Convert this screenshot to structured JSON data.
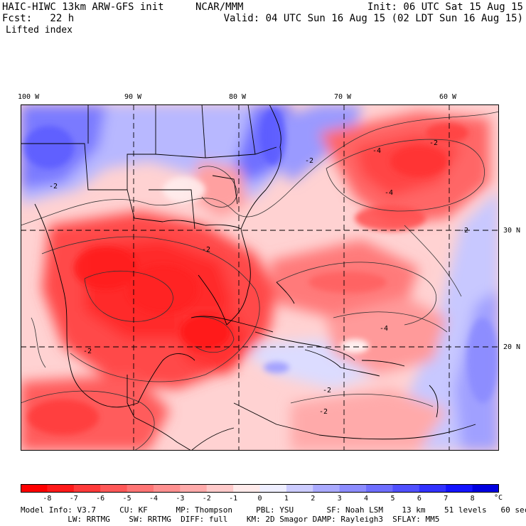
{
  "header": {
    "model_title": "HAIC-HIWC 13km ARW-GFS init",
    "institution": "NCAR/MMM",
    "init_time": "Init: 06 UTC Sat 15 Aug 15",
    "forecast_hour": "Fcst:   22 h",
    "valid_time": "Valid: 04 UTC Sun 16 Aug 15 (02 LDT Sun 16 Aug 15)",
    "field_name": "Lifted index"
  },
  "map": {
    "longitude_labels": [
      "100 W",
      "90 W",
      "80 W",
      "70 W",
      "60 W"
    ],
    "latitude_labels": [
      "30 N",
      "20 N"
    ],
    "contour_labels": [
      "-2",
      "-4",
      "-2",
      "-2",
      "-2",
      "-4",
      "-4",
      "-2",
      "-2",
      "-2",
      "-2"
    ]
  },
  "legend": {
    "ticks": [
      "-8",
      "-7",
      "-6",
      "-5",
      "-4",
      "-3",
      "-2",
      "-1",
      "0",
      "1",
      "2",
      "3",
      "4",
      "5",
      "6",
      "7",
      "8"
    ],
    "unit": "°C",
    "colors": [
      "#ff0000",
      "#ff1a1a",
      "#ff3a3a",
      "#ff5858",
      "#ff7575",
      "#ff9090",
      "#ffabab",
      "#ffcaca",
      "#ffeaea",
      "#eeeeff",
      "#ccccff",
      "#aaaaff",
      "#8c8cff",
      "#6e6eff",
      "#5050ff",
      "#3232ff",
      "#1414ff",
      "#0000e0"
    ]
  },
  "footer": {
    "line1": "Model Info: V3.7     CU: KF      MP: Thompson     PBL: YSU       SF: Noah LSM    13 km    51 levels   60 sec",
    "line2": "          LW: RRTMG    SW: RRTMG  DIFF: full    KM: 2D Smagor DAMP: Rayleigh3  SFLAY: MM5"
  }
}
